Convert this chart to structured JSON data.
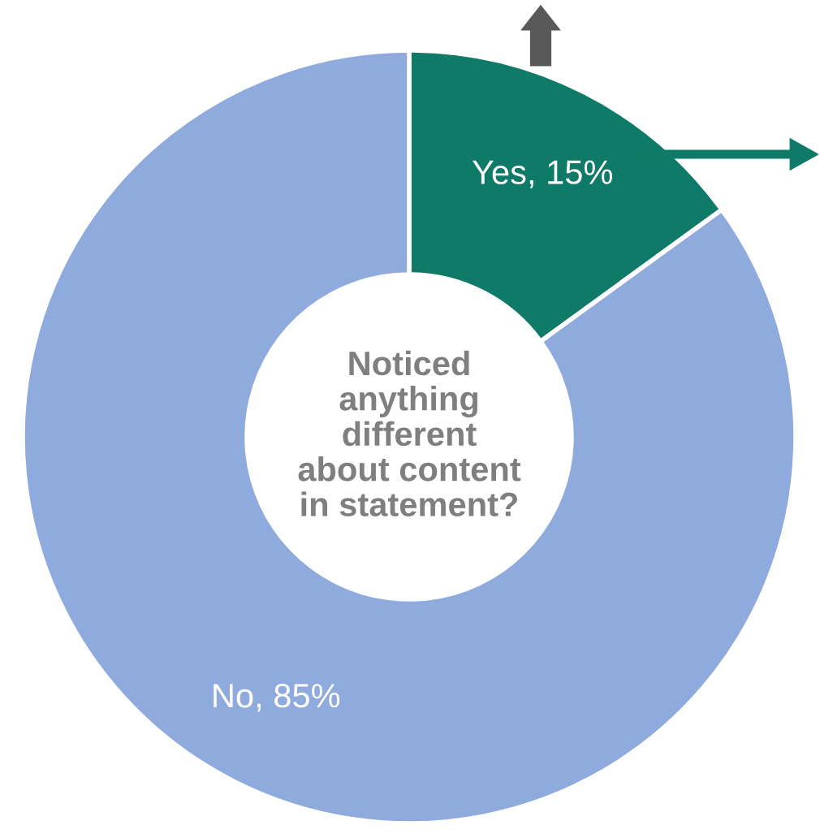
{
  "chart_data": {
    "type": "donut",
    "title": "Noticed\nanything\ndifferent\nabout content\nin statement?",
    "categories": [
      "Yes",
      "No"
    ],
    "values": [
      15,
      85
    ],
    "value_labels": [
      "15%",
      "85%"
    ],
    "colors": [
      "#0e7a67",
      "#8faadc"
    ]
  }
}
